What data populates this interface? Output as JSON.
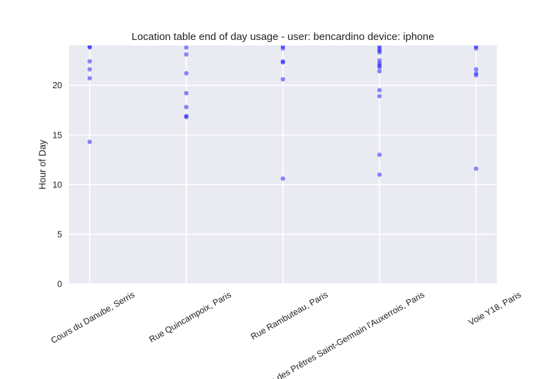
{
  "chart_data": {
    "type": "scatter",
    "title": "Location table end of day usage -  user: bencardino device: iphone",
    "xlabel": "",
    "ylabel": "Hour of Day",
    "ylim": [
      0,
      24
    ],
    "yticks": [
      0,
      5,
      10,
      15,
      20
    ],
    "grid": true,
    "colors": {
      "background": "#eaeaf2",
      "grid": "#ffffff",
      "point": "#0000ff"
    },
    "categories": [
      "Cours du Danube, Serris",
      "Rue Quincampoix, Paris",
      "Rue Rambuteau, Paris",
      "Rue des Prêtres Saint-Germain l'Auxerrois, Paris",
      "Voie Y18, Paris"
    ],
    "series": [
      {
        "points": [
          {
            "x": "Cours du Danube, Serris",
            "y": 23.9
          },
          {
            "x": "Cours du Danube, Serris",
            "y": 23.8
          },
          {
            "x": "Cours du Danube, Serris",
            "y": 22.4
          },
          {
            "x": "Cours du Danube, Serris",
            "y": 21.6
          },
          {
            "x": "Cours du Danube, Serris",
            "y": 20.7
          },
          {
            "x": "Cours du Danube, Serris",
            "y": 14.3
          },
          {
            "x": "Rue Quincampoix, Paris",
            "y": 23.8
          },
          {
            "x": "Rue Quincampoix, Paris",
            "y": 23.1
          },
          {
            "x": "Rue Quincampoix, Paris",
            "y": 21.2
          },
          {
            "x": "Rue Quincampoix, Paris",
            "y": 19.2
          },
          {
            "x": "Rue Quincampoix, Paris",
            "y": 17.8
          },
          {
            "x": "Rue Quincampoix, Paris",
            "y": 16.9
          },
          {
            "x": "Rue Quincampoix, Paris",
            "y": 16.8
          },
          {
            "x": "Rue Rambuteau, Paris",
            "y": 23.9
          },
          {
            "x": "Rue Rambuteau, Paris",
            "y": 23.7
          },
          {
            "x": "Rue Rambuteau, Paris",
            "y": 22.4
          },
          {
            "x": "Rue Rambuteau, Paris",
            "y": 22.3
          },
          {
            "x": "Rue Rambuteau, Paris",
            "y": 20.6
          },
          {
            "x": "Rue Rambuteau, Paris",
            "y": 10.6
          },
          {
            "x": "Rue des Prêtres Saint-Germain l'Auxerrois, Paris",
            "y": 23.95
          },
          {
            "x": "Rue des Prêtres Saint-Germain l'Auxerrois, Paris",
            "y": 23.7
          },
          {
            "x": "Rue des Prêtres Saint-Germain l'Auxerrois, Paris",
            "y": 23.5
          },
          {
            "x": "Rue des Prêtres Saint-Germain l'Auxerrois, Paris",
            "y": 23.3
          },
          {
            "x": "Rue des Prêtres Saint-Germain l'Auxerrois, Paris",
            "y": 22.5
          },
          {
            "x": "Rue des Prêtres Saint-Germain l'Auxerrois, Paris",
            "y": 22.2
          },
          {
            "x": "Rue des Prêtres Saint-Germain l'Auxerrois, Paris",
            "y": 22.0
          },
          {
            "x": "Rue des Prêtres Saint-Germain l'Auxerrois, Paris",
            "y": 21.8
          },
          {
            "x": "Rue des Prêtres Saint-Germain l'Auxerrois, Paris",
            "y": 21.4
          },
          {
            "x": "Rue des Prêtres Saint-Germain l'Auxerrois, Paris",
            "y": 19.5
          },
          {
            "x": "Rue des Prêtres Saint-Germain l'Auxerrois, Paris",
            "y": 18.9
          },
          {
            "x": "Rue des Prêtres Saint-Germain l'Auxerrois, Paris",
            "y": 13.0
          },
          {
            "x": "Rue des Prêtres Saint-Germain l'Auxerrois, Paris",
            "y": 11.0
          },
          {
            "x": "Voie Y18, Paris",
            "y": 23.9
          },
          {
            "x": "Voie Y18, Paris",
            "y": 23.7
          },
          {
            "x": "Voie Y18, Paris",
            "y": 21.6
          },
          {
            "x": "Voie Y18, Paris",
            "y": 21.2
          },
          {
            "x": "Voie Y18, Paris",
            "y": 21.0
          },
          {
            "x": "Voie Y18, Paris",
            "y": 11.6
          }
        ]
      }
    ]
  }
}
